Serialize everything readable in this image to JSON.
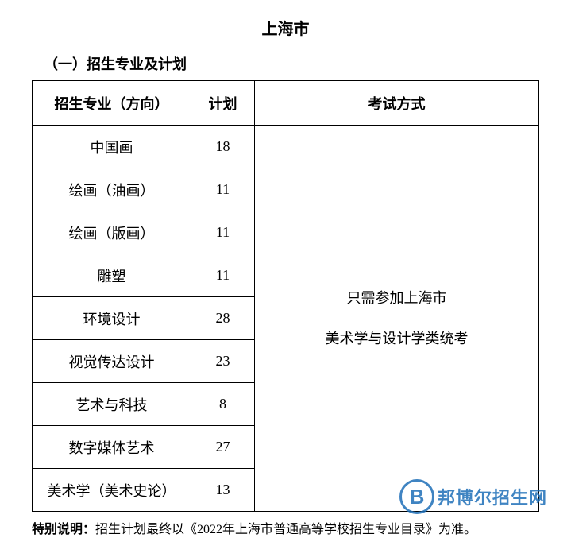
{
  "title": "上海市",
  "subtitle": "（一）招生专业及计划",
  "table": {
    "headers": {
      "major": "招生专业（方向）",
      "plan": "计划",
      "method": "考试方式"
    },
    "col_widths": {
      "major": 200,
      "plan": 80
    },
    "rows": [
      {
        "major": "中国画",
        "plan": "18"
      },
      {
        "major": "绘画（油画）",
        "plan": "11"
      },
      {
        "major": "绘画（版画）",
        "plan": "11"
      },
      {
        "major": "雕塑",
        "plan": "11"
      },
      {
        "major": "环境设计",
        "plan": "28"
      },
      {
        "major": "视觉传达设计",
        "plan": "23"
      },
      {
        "major": "艺术与科技",
        "plan": "8"
      },
      {
        "major": "数字媒体艺术",
        "plan": "27"
      },
      {
        "major": "美术学（美术史论）",
        "plan": "13"
      }
    ],
    "method_line1": "只需参加上海市",
    "method_line2": "美术学与设计学类统考"
  },
  "footnote": {
    "label": "特别说明：",
    "text": "招生计划最终以《2022年上海市普通高等学校招生专业目录》为准。"
  },
  "watermark": {
    "letter": "B",
    "text": "邦博尔招生网",
    "color": "#1e6fb8"
  },
  "colors": {
    "border": "#000000",
    "text": "#000000",
    "background": "#ffffff"
  },
  "fonts": {
    "title_size": 20,
    "subtitle_size": 18,
    "cell_size": 18,
    "footnote_size": 16
  }
}
